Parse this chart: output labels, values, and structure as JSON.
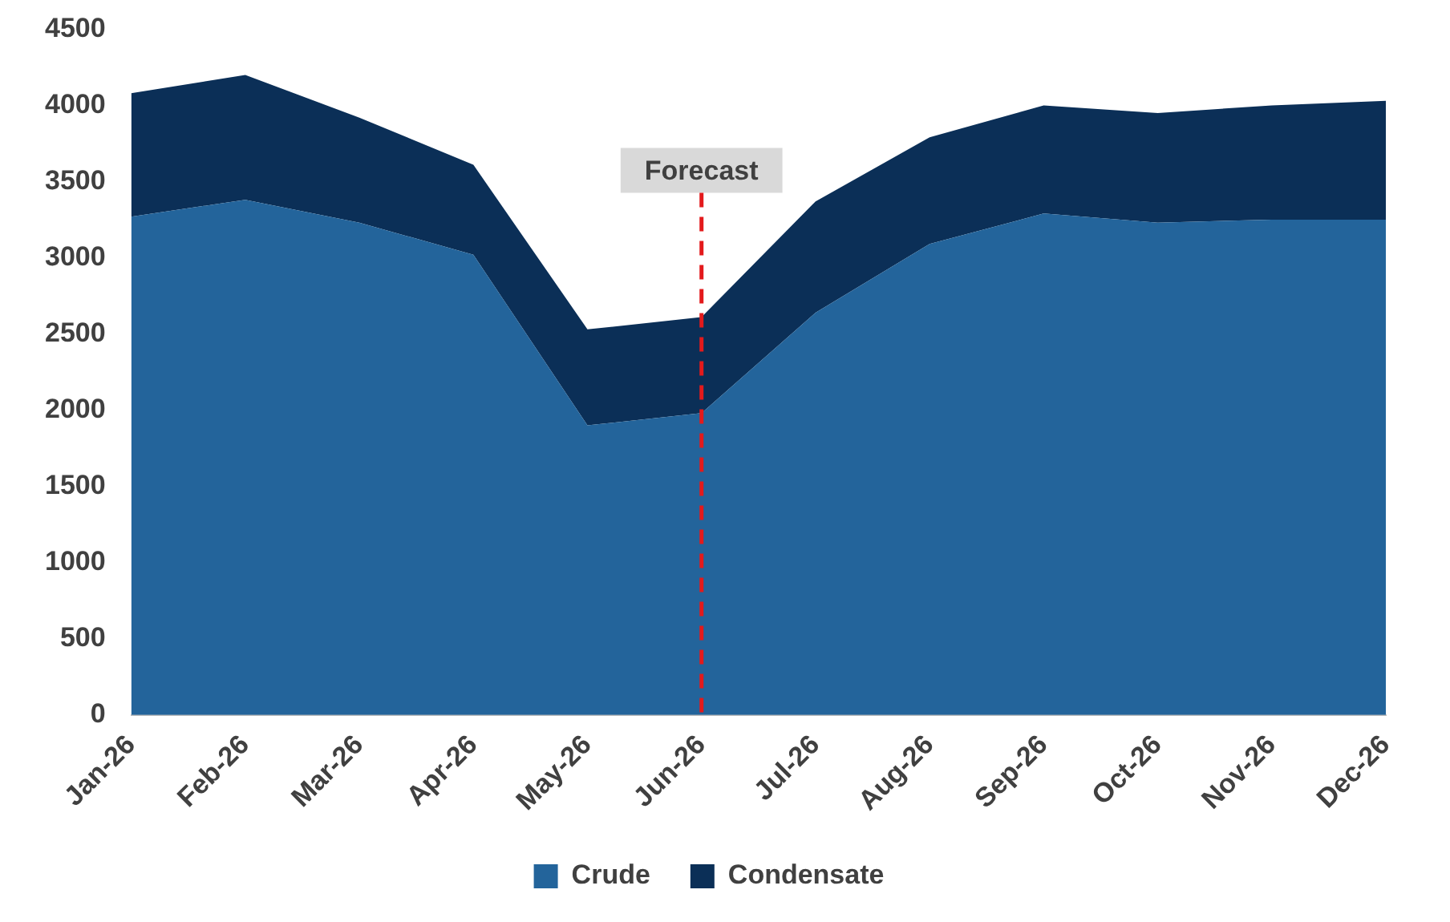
{
  "chart_data": {
    "type": "area",
    "stacked": true,
    "categories": [
      "Jan-26",
      "Feb-26",
      "Mar-26",
      "Apr-26",
      "May-26",
      "Jun-26",
      "Jul-26",
      "Aug-26",
      "Sep-26",
      "Oct-26",
      "Nov-26",
      "Dec-26"
    ],
    "series": [
      {
        "name": "Crude",
        "color": "#23649b",
        "values": [
          3270,
          3380,
          3230,
          3020,
          1900,
          1980,
          2640,
          3090,
          3290,
          3230,
          3250,
          3250
        ]
      },
      {
        "name": "Condensate",
        "color": "#0b2f57",
        "values": [
          810,
          820,
          690,
          590,
          630,
          630,
          730,
          700,
          710,
          720,
          750,
          780
        ]
      }
    ],
    "ylim": [
      0,
      4500
    ],
    "yticks": [
      0,
      500,
      1000,
      1500,
      2000,
      2500,
      3000,
      3500,
      4000,
      4500
    ],
    "grid": false,
    "legend": "bottom",
    "ref_lines": [
      {
        "axis": "x",
        "value": "Jun-26",
        "label": "Forecast",
        "color": "#e31a1c",
        "line_style": "dashed"
      }
    ]
  }
}
